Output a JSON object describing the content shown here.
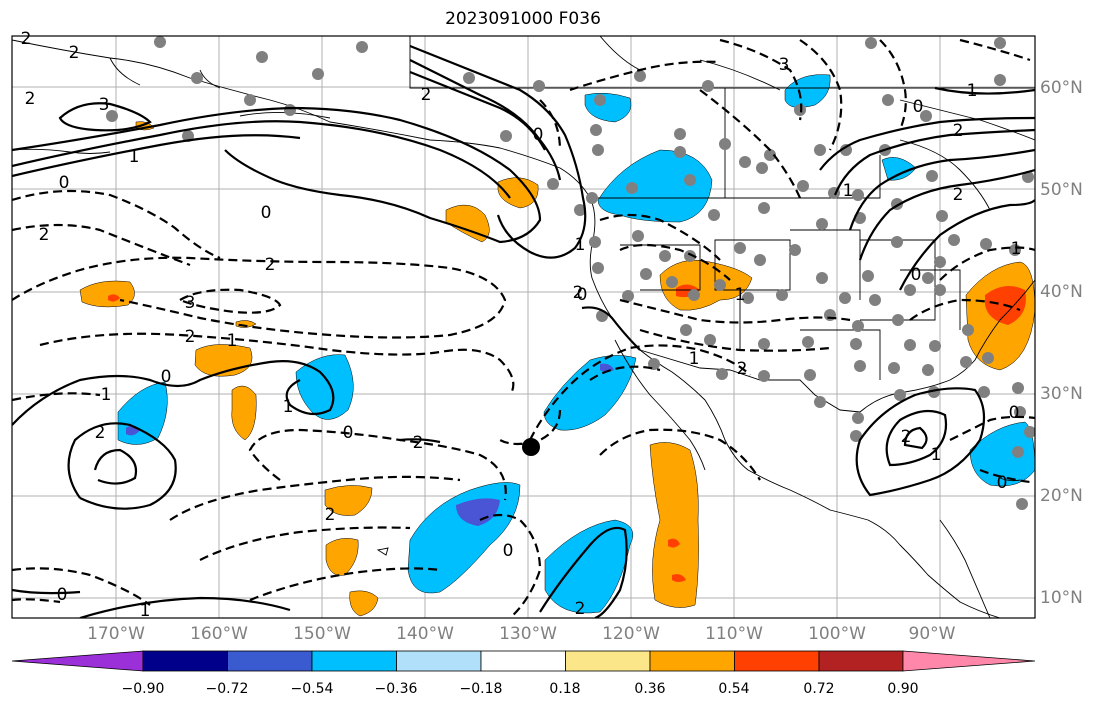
{
  "title": "2023091000 F036",
  "lon_labels": [
    "170°W",
    "160°W",
    "150°W",
    "140°W",
    "130°W",
    "120°W",
    "110°W",
    "100°W",
    "90°W"
  ],
  "lat_labels": [
    "60°N",
    "50°N",
    "40°N",
    "30°N",
    "20°N",
    "10°N"
  ],
  "colorbar": {
    "ticks": [
      "−0.90",
      "−0.72",
      "−0.54",
      "−0.36",
      "−0.18",
      "0.18",
      "0.36",
      "0.54",
      "0.72",
      "0.90"
    ],
    "colors": [
      "#9b30d8",
      "#00008b",
      "#3a5bd0",
      "#00bfff",
      "#b0e0fa",
      "#ffffff",
      "#fbe68a",
      "#ffa500",
      "#ff4000",
      "#b22222",
      "#ff88aa"
    ]
  },
  "contour_labels": [
    "2",
    "2",
    "3",
    "0",
    "2",
    "2",
    "2",
    "3",
    "2",
    "1",
    "0",
    "1",
    "2",
    "0",
    "1",
    "2",
    "0",
    "2",
    "2",
    "1",
    "0",
    "1",
    "0",
    "2",
    "2",
    "1",
    "0",
    "3",
    "0",
    "1",
    "2",
    "1",
    "2",
    "0",
    "1",
    "1",
    "2",
    "0",
    "0",
    "2",
    "1",
    "0",
    "1"
  ],
  "fill_colors": {
    "orange": "#ffa500",
    "red": "#ff4000",
    "blue": "#00bfff",
    "darkblue": "#4a55d6",
    "lightblue": "#b0e0fa"
  }
}
